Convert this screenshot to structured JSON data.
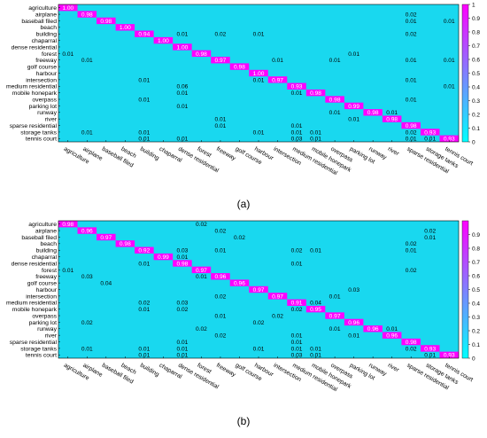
{
  "figure": {
    "colorbar_color_low": "#00ffff",
    "colorbar_color_high": "#ff00ff",
    "cell_background": "#19d8ef"
  },
  "chart_data": [
    {
      "type": "heatmap",
      "caption": "(a)",
      "labels": [
        "agriculture",
        "airplane",
        "baseball filed",
        "beach",
        "building",
        "chaparral",
        "dense residential",
        "forest",
        "freeway",
        "golf course",
        "harbour",
        "intersection",
        "medium residential",
        "mobile honepark",
        "overpass",
        "parking lot",
        "runway",
        "river",
        "sparse residential",
        "storage tanks",
        "tennis court"
      ],
      "colorbar_ticks": [
        "0",
        "0.1",
        "0.2",
        "0.3",
        "0.4",
        "0.5",
        "0.6",
        "0.7",
        "0.8",
        "0.9",
        "1"
      ],
      "clim": [
        0,
        1
      ],
      "cells": [
        [
          0,
          0,
          "1.00"
        ],
        [
          1,
          1,
          "0.98"
        ],
        [
          1,
          18,
          "0.02"
        ],
        [
          2,
          2,
          "0.98"
        ],
        [
          2,
          18,
          "0.01"
        ],
        [
          2,
          20,
          "0.01"
        ],
        [
          3,
          3,
          "1.00"
        ],
        [
          4,
          4,
          "0.94"
        ],
        [
          4,
          6,
          "0.01"
        ],
        [
          4,
          8,
          "0.02"
        ],
        [
          4,
          10,
          "0.01"
        ],
        [
          4,
          18,
          "0.02"
        ],
        [
          5,
          5,
          "1.00"
        ],
        [
          6,
          6,
          "1.00"
        ],
        [
          7,
          0,
          "0.01"
        ],
        [
          7,
          7,
          "0.98"
        ],
        [
          7,
          15,
          "0.01"
        ],
        [
          8,
          1,
          "0.01"
        ],
        [
          8,
          8,
          "0.97"
        ],
        [
          8,
          11,
          "0.01"
        ],
        [
          8,
          14,
          "0.01"
        ],
        [
          8,
          18,
          "0.01"
        ],
        [
          8,
          20,
          "0.01"
        ],
        [
          9,
          9,
          "0.98"
        ],
        [
          10,
          10,
          "1.00"
        ],
        [
          11,
          4,
          "0.01"
        ],
        [
          11,
          10,
          "0.01"
        ],
        [
          11,
          11,
          "0.97"
        ],
        [
          11,
          18,
          "0.01"
        ],
        [
          12,
          6,
          "0.06"
        ],
        [
          12,
          12,
          "0.93"
        ],
        [
          12,
          20,
          "0.01"
        ],
        [
          13,
          6,
          "0.01"
        ],
        [
          13,
          12,
          "0.01"
        ],
        [
          13,
          13,
          "0.98"
        ],
        [
          14,
          4,
          "0.01"
        ],
        [
          14,
          14,
          "0.98"
        ],
        [
          14,
          18,
          "0.01"
        ],
        [
          15,
          6,
          "0.01"
        ],
        [
          15,
          15,
          "0.99"
        ],
        [
          16,
          14,
          "0.01"
        ],
        [
          16,
          16,
          "0.98"
        ],
        [
          16,
          17,
          "0.01"
        ],
        [
          17,
          8,
          "0.01"
        ],
        [
          17,
          15,
          "0.01"
        ],
        [
          17,
          17,
          "0.98"
        ],
        [
          18,
          8,
          "0.01"
        ],
        [
          18,
          12,
          "0.01"
        ],
        [
          18,
          18,
          "0.98"
        ],
        [
          19,
          1,
          "0.01"
        ],
        [
          19,
          4,
          "0.01"
        ],
        [
          19,
          10,
          "0.01"
        ],
        [
          19,
          12,
          "0.01"
        ],
        [
          19,
          13,
          "0.01"
        ],
        [
          19,
          18,
          "0.02"
        ],
        [
          19,
          19,
          "0.93"
        ],
        [
          20,
          4,
          "0.01"
        ],
        [
          20,
          6,
          "0.01"
        ],
        [
          20,
          12,
          "0.03"
        ],
        [
          20,
          13,
          "0.01"
        ],
        [
          20,
          18,
          "0.01"
        ],
        [
          20,
          19,
          "0.01"
        ],
        [
          20,
          20,
          "0.93"
        ]
      ]
    },
    {
      "type": "heatmap",
      "caption": "(b)",
      "labels": [
        "agriculture",
        "airplane",
        "baseball filed",
        "beach",
        "building",
        "chaparral",
        "dense residential",
        "forest",
        "freeway",
        "golf course",
        "harbour",
        "intersection",
        "medium residential",
        "mobile honepark",
        "overpass",
        "parking lot",
        "runway",
        "river",
        "sparse residential",
        "storage tanks",
        "tennis court"
      ],
      "colorbar_ticks": [
        "0",
        "0.1",
        "0.2",
        "0.3",
        "0.4",
        "0.5",
        "0.6",
        "0.7",
        "0.8",
        "0.9"
      ],
      "clim": [
        0,
        1
      ],
      "cells": [
        [
          0,
          0,
          "0.98"
        ],
        [
          0,
          7,
          "0.02"
        ],
        [
          1,
          1,
          "0.96"
        ],
        [
          1,
          8,
          "0.02"
        ],
        [
          1,
          19,
          "0.02"
        ],
        [
          2,
          2,
          "0.97"
        ],
        [
          2,
          9,
          "0.02"
        ],
        [
          2,
          19,
          "0.01"
        ],
        [
          3,
          3,
          "0.98"
        ],
        [
          3,
          18,
          "0.02"
        ],
        [
          4,
          4,
          "0.92"
        ],
        [
          4,
          6,
          "0.03"
        ],
        [
          4,
          8,
          "0.01"
        ],
        [
          4,
          12,
          "0.02"
        ],
        [
          4,
          13,
          "0.01"
        ],
        [
          4,
          18,
          "0.01"
        ],
        [
          5,
          5,
          "0.99"
        ],
        [
          5,
          6,
          "0.01"
        ],
        [
          6,
          4,
          "0.01"
        ],
        [
          6,
          6,
          "0.98"
        ],
        [
          6,
          12,
          "0.01"
        ],
        [
          7,
          0,
          "0.01"
        ],
        [
          7,
          7,
          "0.97"
        ],
        [
          7,
          18,
          "0.02"
        ],
        [
          8,
          1,
          "0.03"
        ],
        [
          8,
          7,
          "0.01"
        ],
        [
          8,
          8,
          "0.96"
        ],
        [
          9,
          2,
          "0.04"
        ],
        [
          9,
          9,
          "0.96"
        ],
        [
          10,
          10,
          "0.97"
        ],
        [
          10,
          15,
          "0.03"
        ],
        [
          11,
          8,
          "0.02"
        ],
        [
          11,
          11,
          "0.97"
        ],
        [
          11,
          14,
          "0.01"
        ],
        [
          12,
          4,
          "0.02"
        ],
        [
          12,
          6,
          "0.03"
        ],
        [
          12,
          12,
          "0.91"
        ],
        [
          12,
          13,
          "0.04"
        ],
        [
          13,
          4,
          "0.01"
        ],
        [
          13,
          6,
          "0.02"
        ],
        [
          13,
          12,
          "0.02"
        ],
        [
          13,
          13,
          "0.95"
        ],
        [
          14,
          8,
          "0.01"
        ],
        [
          14,
          11,
          "0.02"
        ],
        [
          14,
          14,
          "0.97"
        ],
        [
          15,
          1,
          "0.02"
        ],
        [
          15,
          10,
          "0.02"
        ],
        [
          15,
          15,
          "0.96"
        ],
        [
          16,
          7,
          "0.02"
        ],
        [
          16,
          14,
          "0.01"
        ],
        [
          16,
          16,
          "0.96"
        ],
        [
          16,
          17,
          "0.01"
        ],
        [
          17,
          8,
          "0.02"
        ],
        [
          17,
          12,
          "0.01"
        ],
        [
          17,
          15,
          "0.01"
        ],
        [
          17,
          17,
          "0.96"
        ],
        [
          18,
          6,
          "0.01"
        ],
        [
          18,
          12,
          "0.01"
        ],
        [
          18,
          18,
          "0.98"
        ],
        [
          19,
          1,
          "0.01"
        ],
        [
          19,
          4,
          "0.01"
        ],
        [
          19,
          6,
          "0.01"
        ],
        [
          19,
          10,
          "0.01"
        ],
        [
          19,
          12,
          "0.01"
        ],
        [
          19,
          13,
          "0.01"
        ],
        [
          19,
          18,
          "0.02"
        ],
        [
          19,
          19,
          "0.93"
        ],
        [
          20,
          4,
          "0.01"
        ],
        [
          20,
          6,
          "0.01"
        ],
        [
          20,
          12,
          "0.03"
        ],
        [
          20,
          13,
          "0.01"
        ],
        [
          20,
          19,
          "0.01"
        ],
        [
          20,
          20,
          "0.93"
        ]
      ]
    }
  ]
}
